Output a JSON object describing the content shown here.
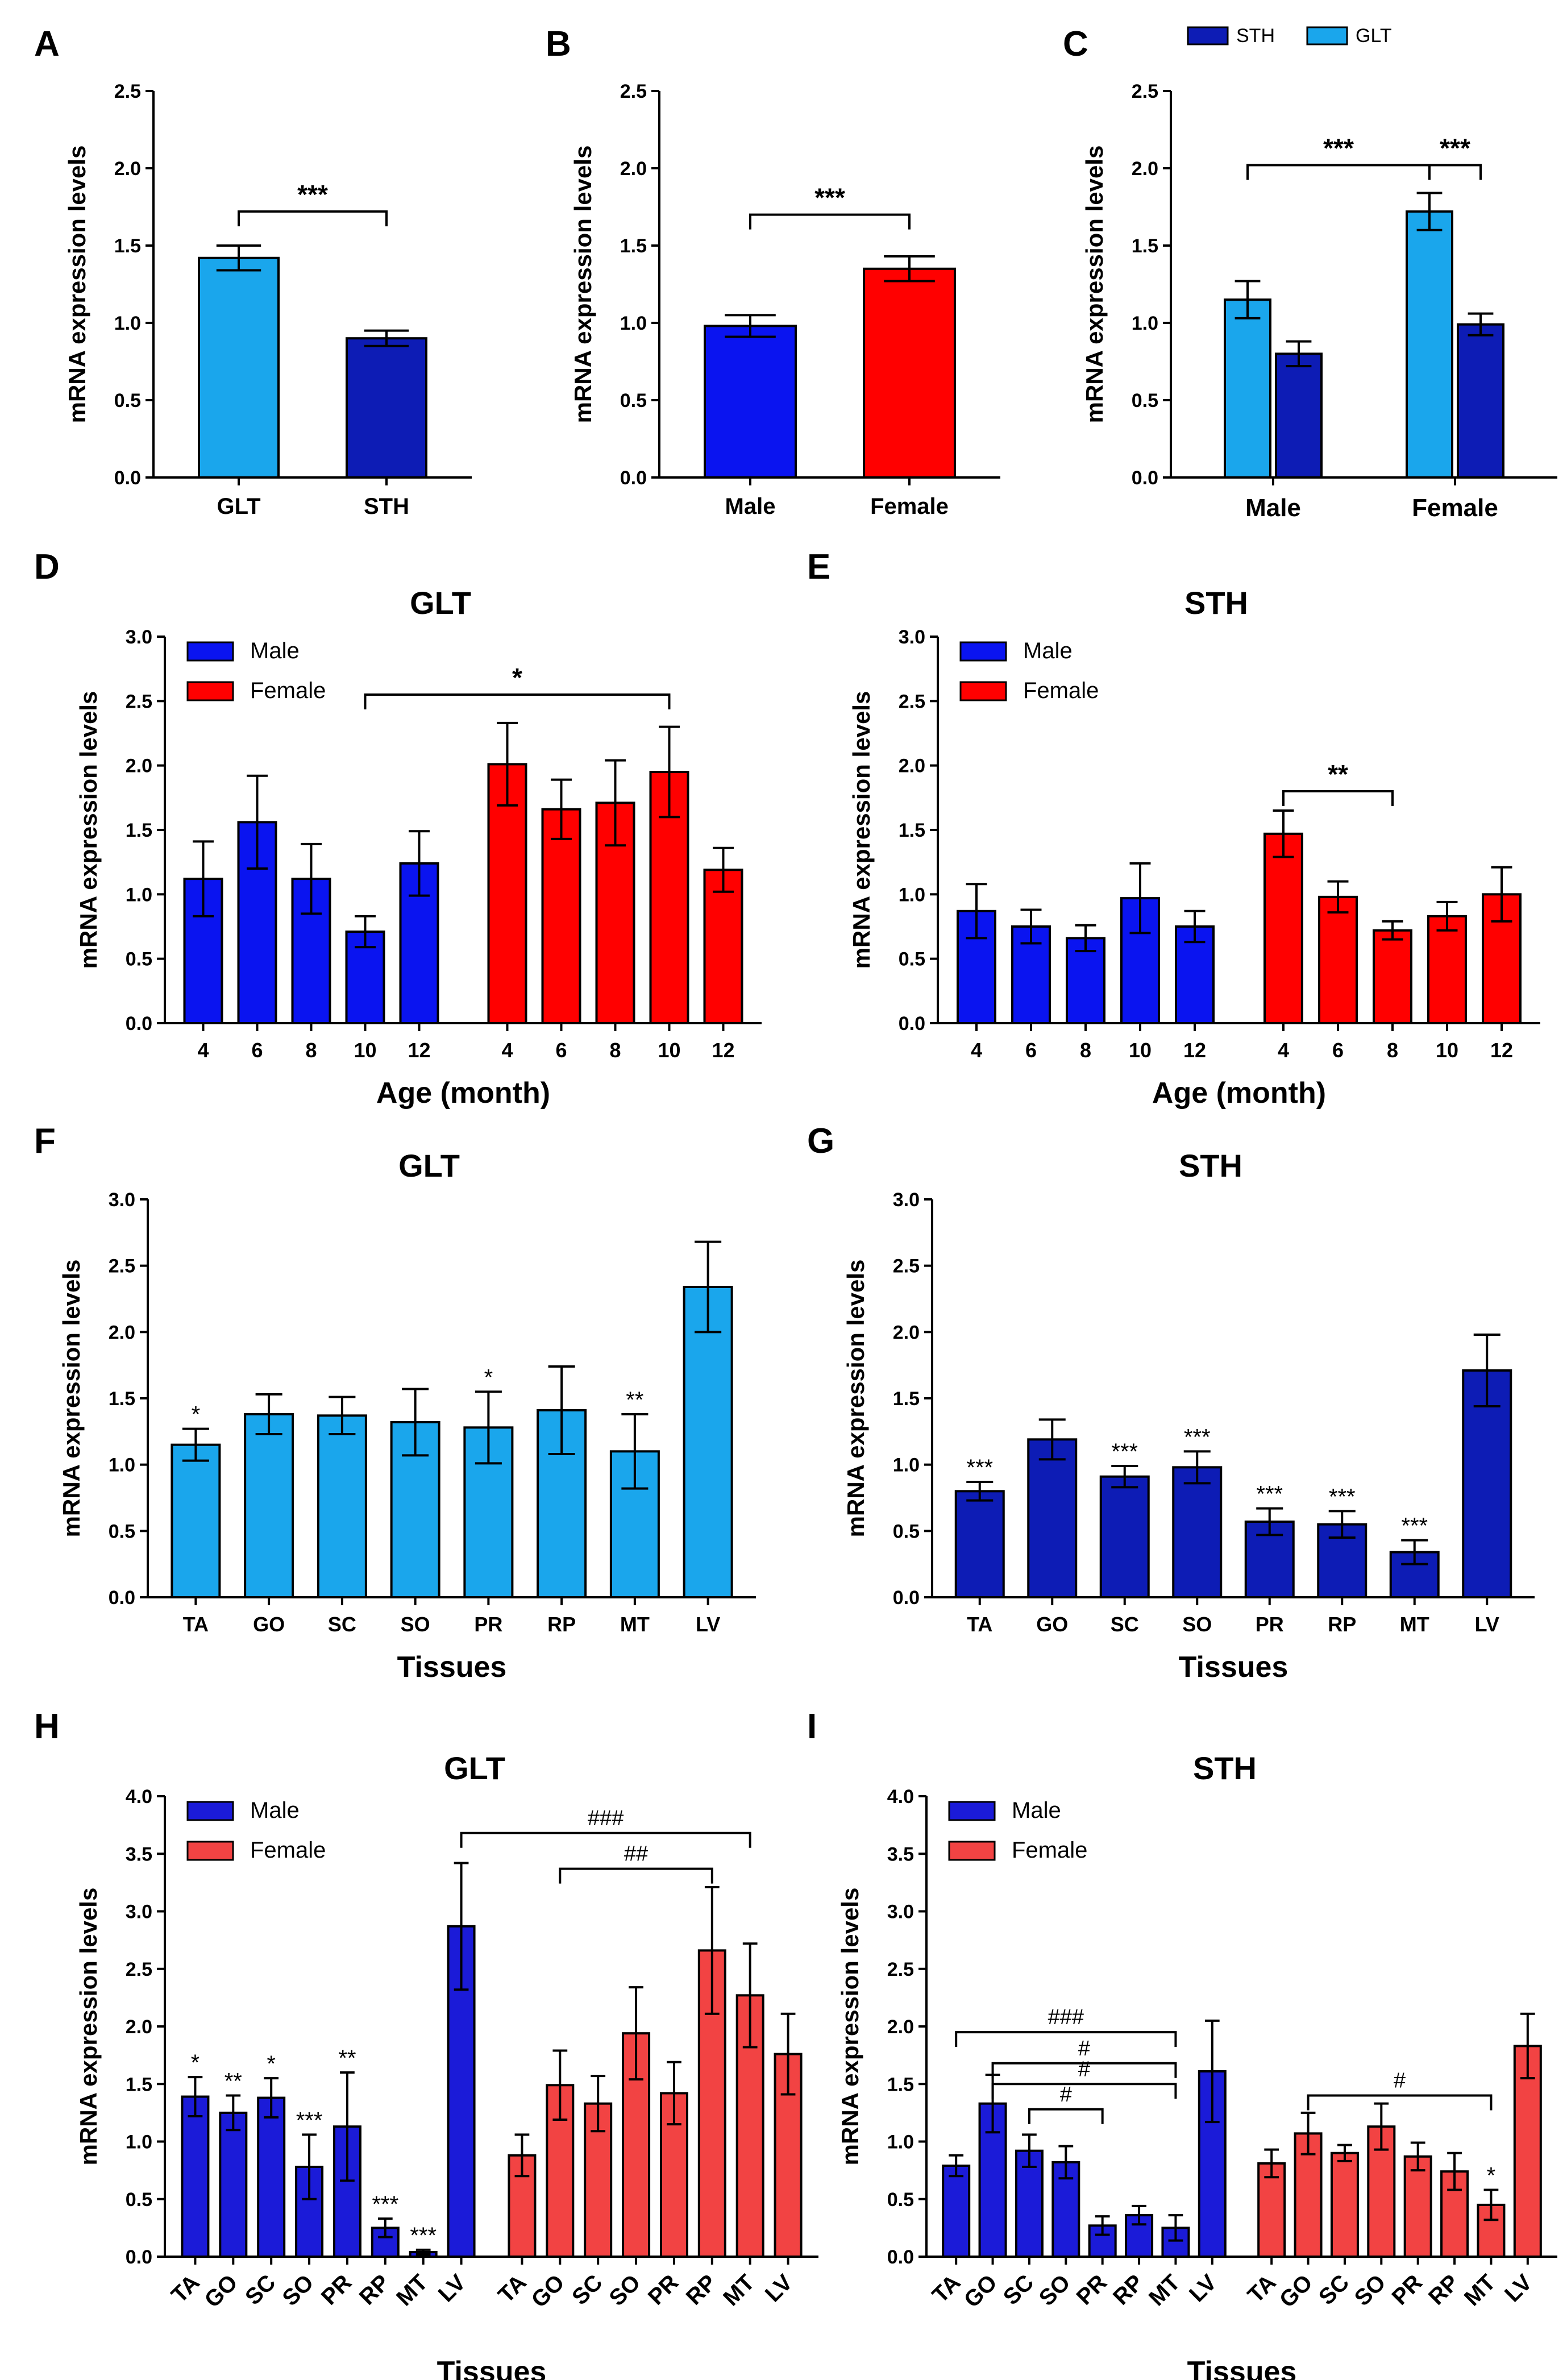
{
  "colors": {
    "male": "#0a14f0",
    "female": "#ff0000",
    "glt": "#1aa6ec",
    "sth": "#0d1cb5",
    "male_h": "#1b1bd8",
    "female_h": "#f24343"
  },
  "chart_data": [
    {
      "id": "A",
      "letter": "A",
      "type": "bar",
      "title": "",
      "ylabel": "mRNA expression levels",
      "xlabel": "",
      "ylim": [
        0,
        2.5
      ],
      "yticks": [
        "0.0",
        "0.5",
        "1.0",
        "1.5",
        "2.0",
        "2.5"
      ],
      "categories": [
        "GLT",
        "STH"
      ],
      "series": [
        {
          "name": "",
          "values": [
            1.42,
            0.9
          ],
          "errors": [
            0.08,
            0.05
          ],
          "colorKeys": [
            "glt",
            "sth"
          ]
        }
      ],
      "brackets": [
        {
          "label": "***",
          "from": 0,
          "to": 1,
          "y": 1.72
        }
      ],
      "stars": []
    },
    {
      "id": "B",
      "letter": "B",
      "type": "bar",
      "title": "",
      "ylabel": "mRNA expression levels",
      "xlabel": "",
      "ylim": [
        0,
        2.5
      ],
      "yticks": [
        "0.0",
        "0.5",
        "1.0",
        "1.5",
        "2.0",
        "2.5"
      ],
      "categories": [
        "Male",
        "Female"
      ],
      "series": [
        {
          "name": "",
          "values": [
            0.98,
            1.35
          ],
          "errors": [
            0.07,
            0.08
          ],
          "colorKeys": [
            "male",
            "female"
          ]
        }
      ],
      "brackets": [
        {
          "label": "***",
          "from": 0,
          "to": 1,
          "y": 1.7
        }
      ],
      "stars": []
    },
    {
      "id": "C",
      "letter": "C",
      "type": "bar",
      "title": "",
      "ylabel": "mRNA expression levels",
      "xlabel": "",
      "ylim": [
        0,
        2.5
      ],
      "yticks": [
        "0.0",
        "0.5",
        "1.0",
        "1.5",
        "2.0",
        "2.5"
      ],
      "categories": [
        "Male",
        "Female"
      ],
      "legend": [
        {
          "label": "STH",
          "colorKey": "sth"
        },
        {
          "label": "GLT",
          "colorKey": "glt"
        }
      ],
      "series": [
        {
          "name": "GLT",
          "values": [
            1.15,
            1.72
          ],
          "errors": [
            0.12,
            0.12
          ],
          "colorKey": "glt"
        },
        {
          "name": "STH",
          "values": [
            0.8,
            0.99
          ],
          "errors": [
            0.08,
            0.07
          ],
          "colorKey": "sth"
        }
      ],
      "brackets": [
        {
          "label": "***",
          "from": 0,
          "to": 2,
          "y": 2.02
        },
        {
          "label": "***",
          "from": 2,
          "to": 3,
          "y": 2.02
        }
      ],
      "stars": []
    },
    {
      "id": "D",
      "letter": "D",
      "type": "bar",
      "title": "GLT",
      "ylabel": "mRNA expression levels",
      "xlabel": "Age (month)",
      "ylim": [
        0,
        3.0
      ],
      "yticks": [
        "0.0",
        "0.5",
        "1.0",
        "1.5",
        "2.0",
        "2.5",
        "3.0"
      ],
      "legend": [
        {
          "label": "Male",
          "colorKey": "male"
        },
        {
          "label": "Female",
          "colorKey": "female"
        }
      ],
      "groups": [
        {
          "name": "Male",
          "colorKey": "male",
          "categories": [
            "4",
            "6",
            "8",
            "10",
            "12"
          ],
          "values": [
            1.12,
            1.56,
            1.12,
            0.71,
            1.24
          ],
          "errors": [
            0.29,
            0.36,
            0.27,
            0.12,
            0.25
          ]
        },
        {
          "name": "Female",
          "colorKey": "female",
          "categories": [
            "4",
            "6",
            "8",
            "10",
            "12"
          ],
          "values": [
            2.01,
            1.66,
            1.71,
            1.95,
            1.19
          ],
          "errors": [
            0.32,
            0.23,
            0.33,
            0.35,
            0.17
          ]
        }
      ],
      "brackets": [
        {
          "label": "*",
          "from": 3,
          "to": 8,
          "y": 2.55
        }
      ],
      "stars": []
    },
    {
      "id": "E",
      "letter": "E",
      "type": "bar",
      "title": "STH",
      "ylabel": "mRNA expression levels",
      "xlabel": "Age (month)",
      "ylim": [
        0,
        3.0
      ],
      "yticks": [
        "0.0",
        "0.5",
        "1.0",
        "1.5",
        "2.0",
        "2.5",
        "3.0"
      ],
      "legend": [
        {
          "label": "Male",
          "colorKey": "male"
        },
        {
          "label": "Female",
          "colorKey": "female"
        }
      ],
      "groups": [
        {
          "name": "Male",
          "colorKey": "male",
          "categories": [
            "4",
            "6",
            "8",
            "10",
            "12"
          ],
          "values": [
            0.87,
            0.75,
            0.66,
            0.97,
            0.75
          ],
          "errors": [
            0.21,
            0.13,
            0.1,
            0.27,
            0.12
          ]
        },
        {
          "name": "Female",
          "colorKey": "female",
          "categories": [
            "4",
            "6",
            "8",
            "10",
            "12"
          ],
          "values": [
            1.47,
            0.98,
            0.72,
            0.83,
            1.0
          ],
          "errors": [
            0.18,
            0.12,
            0.07,
            0.11,
            0.21
          ]
        }
      ],
      "brackets": [
        {
          "label": "**",
          "from": 5,
          "to": 7,
          "y": 1.8
        }
      ],
      "stars": []
    },
    {
      "id": "F",
      "letter": "F",
      "type": "bar",
      "title": "GLT",
      "ylabel": "mRNA expression levels",
      "xlabel": "Tissues",
      "ylim": [
        0,
        3.0
      ],
      "yticks": [
        "0.0",
        "0.5",
        "1.0",
        "1.5",
        "2.0",
        "2.5",
        "3.0"
      ],
      "categories": [
        "TA",
        "GO",
        "SC",
        "SO",
        "PR",
        "RP",
        "MT",
        "LV"
      ],
      "series": [
        {
          "name": "GLT",
          "values": [
            1.15,
            1.38,
            1.37,
            1.32,
            1.28,
            1.41,
            1.1,
            2.34
          ],
          "errors": [
            0.12,
            0.15,
            0.14,
            0.25,
            0.27,
            0.33,
            0.28,
            0.34
          ],
          "colorKey": "glt"
        }
      ],
      "brackets": [],
      "stars": [
        "*",
        "",
        "",
        "",
        "*",
        "",
        "**",
        ""
      ]
    },
    {
      "id": "G",
      "letter": "G",
      "type": "bar",
      "title": "STH",
      "ylabel": "mRNA expression levels",
      "xlabel": "Tissues",
      "ylim": [
        0,
        3.0
      ],
      "yticks": [
        "0.0",
        "0.5",
        "1.0",
        "1.5",
        "2.0",
        "2.5",
        "3.0"
      ],
      "categories": [
        "TA",
        "GO",
        "SC",
        "SO",
        "PR",
        "RP",
        "MT",
        "LV"
      ],
      "series": [
        {
          "name": "STH",
          "values": [
            0.8,
            1.19,
            0.91,
            0.98,
            0.57,
            0.55,
            0.34,
            1.71
          ],
          "errors": [
            0.07,
            0.15,
            0.08,
            0.12,
            0.1,
            0.1,
            0.09,
            0.27
          ],
          "colorKey": "sth"
        }
      ],
      "brackets": [],
      "stars": [
        "***",
        "",
        "***",
        "***",
        "***",
        "***",
        "***",
        ""
      ]
    },
    {
      "id": "H",
      "letter": "H",
      "type": "bar",
      "title": "GLT",
      "ylabel": "mRNA expression levels",
      "xlabel": "Tissues",
      "ylim": [
        0,
        4.0
      ],
      "yticks": [
        "0.0",
        "0.5",
        "1.0",
        "1.5",
        "2.0",
        "2.5",
        "3.0",
        "3.5",
        "4.0"
      ],
      "legend": [
        {
          "label": "Male",
          "colorKey": "male_h"
        },
        {
          "label": "Female",
          "colorKey": "female_h"
        }
      ],
      "groups": [
        {
          "name": "Male",
          "colorKey": "male_h",
          "categories": [
            "TA",
            "GO",
            "SC",
            "SO",
            "PR",
            "RP",
            "MT",
            "LV"
          ],
          "values": [
            1.39,
            1.25,
            1.38,
            0.78,
            1.13,
            0.25,
            0.04,
            2.87
          ],
          "errors": [
            0.17,
            0.15,
            0.17,
            0.28,
            0.47,
            0.08,
            0.02,
            0.55
          ]
        },
        {
          "name": "Female",
          "colorKey": "female_h",
          "categories": [
            "TA",
            "GO",
            "SC",
            "SO",
            "PR",
            "RP",
            "MT",
            "LV"
          ],
          "values": [
            0.88,
            1.49,
            1.33,
            1.94,
            1.42,
            2.66,
            2.27,
            1.76
          ],
          "errors": [
            0.18,
            0.3,
            0.24,
            0.4,
            0.27,
            0.55,
            0.45,
            0.35
          ]
        }
      ],
      "brackets": [
        {
          "label": "###",
          "from": 7,
          "to": 14,
          "y": 3.68
        },
        {
          "label": "##",
          "from": 9,
          "to": 13,
          "y": 3.37
        }
      ],
      "stars": [
        "*",
        "**",
        "*",
        "***",
        "**",
        "***",
        "***",
        "",
        "",
        "",
        "",
        "",
        "",
        "",
        "",
        ""
      ],
      "rotatedTicks": true
    },
    {
      "id": "I",
      "letter": "I",
      "type": "bar",
      "title": "STH",
      "ylabel": "mRNA expression levels",
      "xlabel": "Tissues",
      "ylim": [
        0,
        4.0
      ],
      "yticks": [
        "0.0",
        "0.5",
        "1.0",
        "1.5",
        "2.0",
        "2.5",
        "3.0",
        "3.5",
        "4.0"
      ],
      "legend": [
        {
          "label": "Male",
          "colorKey": "male_h"
        },
        {
          "label": "Female",
          "colorKey": "female_h"
        }
      ],
      "groups": [
        {
          "name": "Male",
          "colorKey": "male_h",
          "categories": [
            "TA",
            "GO",
            "SC",
            "SO",
            "PR",
            "RP",
            "MT",
            "LV"
          ],
          "values": [
            0.79,
            1.33,
            0.92,
            0.82,
            0.27,
            0.36,
            0.25,
            1.61
          ],
          "errors": [
            0.09,
            0.25,
            0.14,
            0.14,
            0.08,
            0.08,
            0.11,
            0.44
          ]
        },
        {
          "name": "Female",
          "colorKey": "female_h",
          "categories": [
            "TA",
            "GO",
            "SC",
            "SO",
            "PR",
            "RP",
            "MT",
            "LV"
          ],
          "values": [
            0.81,
            1.07,
            0.9,
            1.13,
            0.87,
            0.74,
            0.45,
            1.83
          ],
          "errors": [
            0.12,
            0.18,
            0.07,
            0.2,
            0.12,
            0.16,
            0.13,
            0.28
          ]
        }
      ],
      "brackets": [
        {
          "label": "###",
          "from": 0,
          "to": 6,
          "y": 1.95
        },
        {
          "label": "#",
          "from": 1,
          "to": 6,
          "y": 1.68
        },
        {
          "label": "#",
          "from": 1,
          "to": 6,
          "y": 1.5
        },
        {
          "label": "#",
          "from": 2,
          "to": 4,
          "y": 1.28
        },
        {
          "label": "#",
          "from": 9,
          "to": 14,
          "y": 1.4
        }
      ],
      "stars": [
        "",
        "",
        "",
        "",
        "",
        "",
        "",
        "",
        "",
        "",
        "",
        "",
        "",
        "",
        "*",
        ""
      ],
      "rotatedTicks": true
    }
  ]
}
